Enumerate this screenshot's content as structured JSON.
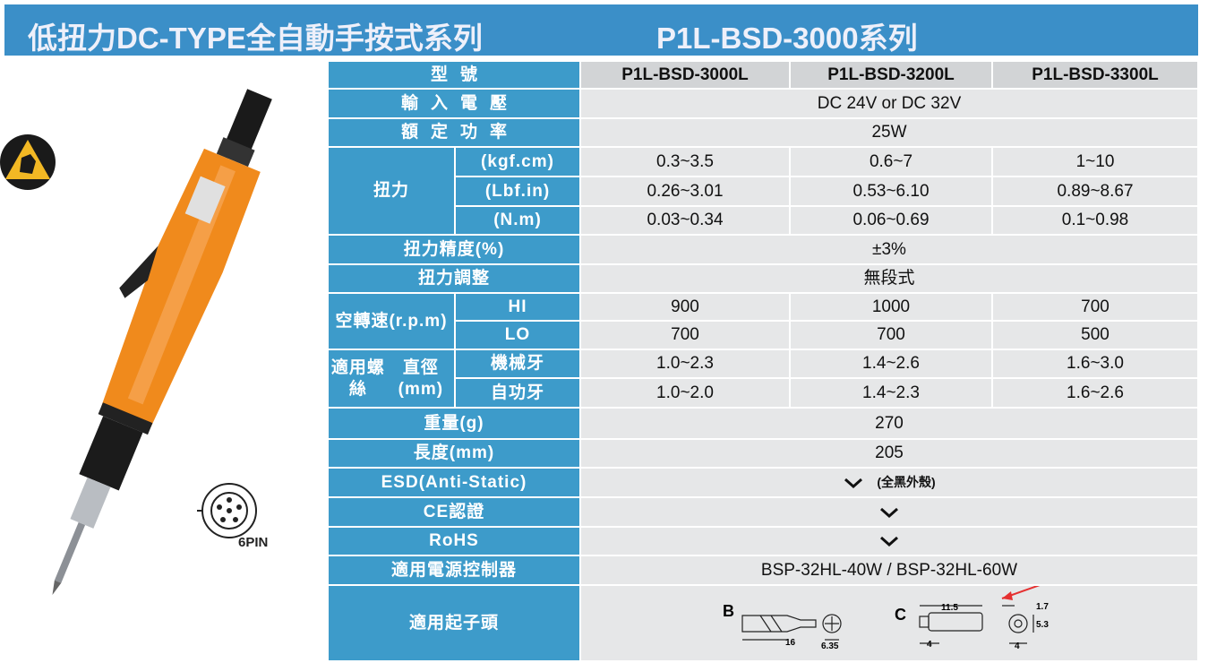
{
  "header": {
    "title": "低扭力DC-TYPE全自動手按式系列",
    "series": "P1L-BSD-3000系列"
  },
  "connector": "6PIN",
  "table": {
    "model_label": "型號",
    "models": [
      "P1L-BSD-3000L",
      "P1L-BSD-3200L",
      "P1L-BSD-3300L"
    ],
    "voltage": {
      "label": "輸入電壓",
      "value": "DC 24V or DC 32V"
    },
    "power": {
      "label": "額定功率",
      "value": "25W"
    },
    "torque": {
      "label": "扭力",
      "rows": [
        {
          "unit": "(kgf.cm)",
          "values": [
            "0.3~3.5",
            "0.6~7",
            "1~10"
          ]
        },
        {
          "unit": "(Lbf.in)",
          "values": [
            "0.26~3.01",
            "0.53~6.10",
            "0.89~8.67"
          ]
        },
        {
          "unit": "(N.m)",
          "values": [
            "0.03~0.34",
            "0.06~0.69",
            "0.1~0.98"
          ]
        }
      ]
    },
    "accuracy": {
      "label": "扭力精度(%)",
      "value": "±3%"
    },
    "adjust": {
      "label": "扭力調整",
      "value": "無段式"
    },
    "speed": {
      "label": "空轉速",
      "unit": "(r.p.m)",
      "rows": [
        {
          "mode": "HI",
          "values": [
            "900",
            "1000",
            "700"
          ]
        },
        {
          "mode": "LO",
          "values": [
            "700",
            "700",
            "500"
          ]
        }
      ]
    },
    "screw": {
      "label": "適用螺絲",
      "unit": "直徑(mm)",
      "rows": [
        {
          "kind": "機械牙",
          "values": [
            "1.0~2.3",
            "1.4~2.6",
            "1.6~3.0"
          ]
        },
        {
          "kind": "自功牙",
          "values": [
            "1.0~2.0",
            "1.4~2.3",
            "1.6~2.6"
          ]
        }
      ]
    },
    "weight": {
      "label": "重量(g)",
      "value": "270"
    },
    "length": {
      "label": "長度(mm)",
      "value": "205"
    },
    "esd": {
      "label": "ESD(Anti-Static)",
      "note": "(全黑外殼)"
    },
    "ce": {
      "label": "CE認證"
    },
    "rohs": {
      "label": "RoHS"
    },
    "controller": {
      "label": "適用電源控制器",
      "value": "BSP-32HL-40W /  BSP-32HL-60W"
    },
    "bits": {
      "label": "適用起子頭",
      "b": {
        "name": "B",
        "dims": [
          "16",
          "6.35"
        ]
      },
      "c": {
        "name": "C",
        "dims": [
          "11.5",
          "4",
          "1.7",
          "5.3",
          "4"
        ]
      }
    }
  }
}
